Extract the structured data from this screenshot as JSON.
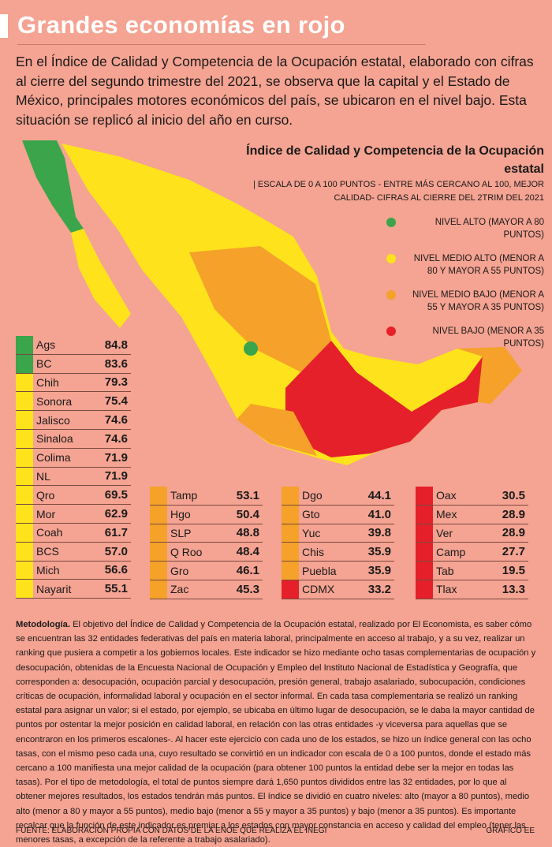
{
  "header": {
    "title": "Grandes economías en rojo",
    "intro": "En el Índice de Calidad y Competencia de la Ocupación estatal, elaborado con cifras al cierre del segundo trimestre del 2021, se observa que la capital y el Estado de México, principales motores económicos del país, se ubicaron en el nivel bajo. Esta situación se replicó al inicio del año en curso."
  },
  "legend": {
    "title": "Índice de Calidad y Competencia de la Ocupación estatal",
    "subtitle": "| ESCALA DE 0 A 100 PUNTOS - ENTRE MÁS CERCANO AL 100, MEJOR CALIDAD- CIFRAS AL CIERRE DEL 2TRIM DEL 2021",
    "levels": [
      {
        "label": "NIVEL ALTO (MAYOR A 80 PUNTOS)",
        "color": "#3aa54a"
      },
      {
        "label": "NIVEL MEDIO ALTO (MENOR A 80 Y MAYOR A 55 PUNTOS)",
        "color": "#fde21c"
      },
      {
        "label": "NIVEL MEDIO BAJO (MENOR A 55 Y MAYOR A 35 PUNTOS)",
        "color": "#f5a12a"
      },
      {
        "label": "NIVEL BAJO (MENOR A 35 PUNTOS)",
        "color": "#e5202a"
      }
    ]
  },
  "table": {
    "columns": [
      [
        {
          "state": "Ags",
          "value": "84.8",
          "color": "#3aa54a"
        },
        {
          "state": "BC",
          "value": "83.6",
          "color": "#3aa54a"
        },
        {
          "state": "Chih",
          "value": "79.3",
          "color": "#fde21c"
        },
        {
          "state": "Sonora",
          "value": "75.4",
          "color": "#fde21c"
        },
        {
          "state": "Jalisco",
          "value": "74.6",
          "color": "#fde21c"
        },
        {
          "state": "Sinaloa",
          "value": "74.6",
          "color": "#fde21c"
        },
        {
          "state": "Colima",
          "value": "71.9",
          "color": "#fde21c"
        },
        {
          "state": "NL",
          "value": "71.9",
          "color": "#fde21c"
        },
        {
          "state": "Qro",
          "value": "69.5",
          "color": "#fde21c"
        },
        {
          "state": "Mor",
          "value": "62.9",
          "color": "#fde21c"
        },
        {
          "state": "Coah",
          "value": "61.7",
          "color": "#fde21c"
        },
        {
          "state": "BCS",
          "value": "57.0",
          "color": "#fde21c"
        },
        {
          "state": "Mich",
          "value": "56.6",
          "color": "#fde21c"
        },
        {
          "state": "Nayarit",
          "value": "55.1",
          "color": "#fde21c"
        }
      ],
      [
        {
          "state": "Tamp",
          "value": "53.1",
          "color": "#f5a12a"
        },
        {
          "state": "Hgo",
          "value": "50.4",
          "color": "#f5a12a"
        },
        {
          "state": "SLP",
          "value": "48.8",
          "color": "#f5a12a"
        },
        {
          "state": "Q Roo",
          "value": "48.4",
          "color": "#f5a12a"
        },
        {
          "state": "Gro",
          "value": "46.1",
          "color": "#f5a12a"
        },
        {
          "state": "Zac",
          "value": "45.3",
          "color": "#f5a12a"
        }
      ],
      [
        {
          "state": "Dgo",
          "value": "44.1",
          "color": "#f5a12a"
        },
        {
          "state": "Gto",
          "value": "41.0",
          "color": "#f5a12a"
        },
        {
          "state": "Yuc",
          "value": "39.8",
          "color": "#f5a12a"
        },
        {
          "state": "Chis",
          "value": "35.9",
          "color": "#f5a12a"
        },
        {
          "state": "Puebla",
          "value": "35.9",
          "color": "#f5a12a"
        },
        {
          "state": "CDMX",
          "value": "33.2",
          "color": "#e5202a"
        }
      ],
      [
        {
          "state": "Oax",
          "value": "30.5",
          "color": "#e5202a"
        },
        {
          "state": "Mex",
          "value": "28.9",
          "color": "#e5202a"
        },
        {
          "state": "Ver",
          "value": "28.9",
          "color": "#e5202a"
        },
        {
          "state": "Camp",
          "value": "27.7",
          "color": "#e5202a"
        },
        {
          "state": "Tab",
          "value": "19.5",
          "color": "#e5202a"
        },
        {
          "state": "Tlax",
          "value": "13.3",
          "color": "#e5202a"
        }
      ]
    ]
  },
  "methodology": {
    "label": "Metodología.",
    "text": "El objetivo del Índice de Calidad y Competencia de la Ocupación estatal, realizado por El Economista, es saber cómo se encuentran las 32 entidades federativas del país en materia laboral, principalmente en acceso al trabajo, y a su vez, realizar un ranking que pusiera a competir a los gobiernos locales. Este indicador se hizo mediante ocho tasas complementarias de ocupación y desocupación, obtenidas de la Encuesta Nacional de Ocupación y Empleo del Instituto Nacional de Estadística y Geografía, que corresponden a: desocupación, ocupación parcial y desocupación, presión general, trabajo asalariado, subocupación, condiciones críticas de ocupación, informalidad laboral y ocupación en el sector informal. En cada tasa complementaria se realizó un ranking estatal para asignar un valor; si el estado, por ejemplo, se ubicaba en último lugar de desocupación, se le daba la mayor cantidad de puntos por ostentar la mejor posición en calidad laboral, en relación con las otras entidades -y viceversa para aquellas que se encontraron en los primeros escalones-. Al hacer este ejercicio con cada uno de los estados, se hizo un índice general con las ocho tasas, con el mismo peso cada una, cuyo resultado se convirtió en un indicador con escala de 0 a 100 puntos, donde el estado más cercano a 100 manifiesta una mejor calidad de la ocupación (para obtener 100 puntos la entidad debe ser la mejor en todas las tasas). Por el tipo de metodología, el total de puntos siempre dará 1,650 puntos divididos entre las 32 entidades, por lo que al obtener mejores resultados, los estados tendrán más puntos. El índice se dividió en cuatro niveles: alto (mayor a 80 puntos), medio alto (menor a 80 y mayor a 55 puntos), medio bajo (menor a 55 y mayor a 35 puntos) y bajo (menor a 35 puntos). Es importante recalcar que la función de este indicador es premiar a los estados con mayor constancia en acceso y calidad del empleo (tener las menores tasas, a excepción de la referente a trabajo asalariado)."
  },
  "footer": {
    "source": "FUENTE: ELABORACIÓN PROPIA CON DATOS DE LA ENOE QUE REALIZA EL INEGI",
    "credit": "GRÁFICO EE"
  }
}
